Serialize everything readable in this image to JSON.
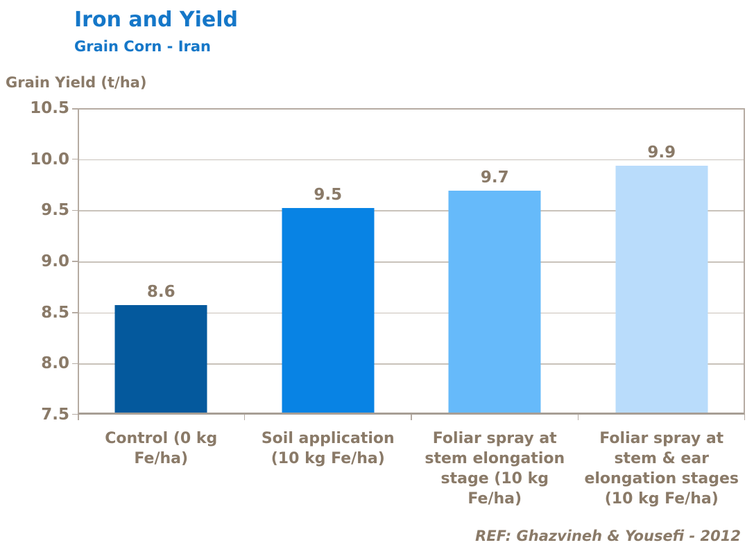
{
  "colors": {
    "title_blue": "#1577C8",
    "text_taupe": "#8A7A68",
    "gridline": "#C9C2BA",
    "plot_border": "#B5ABA2",
    "axis_line": "#A79E95"
  },
  "chart_data": {
    "type": "bar",
    "title": "Iron and Yield",
    "subtitle": "Grain Corn - Iran",
    "ylabel": "Grain Yield (t/ha)",
    "categories": [
      "Control (0 kg Fe/ha)",
      "Soil application (10 kg Fe/ha)",
      "Foliar spray at stem elongation stage (10 kg Fe/ha)",
      "Foliar spray at stem & ear elongation stages (10 kg Fe/ha)"
    ],
    "categories_display": [
      "Control (0 kg\nFe/ha)",
      "Soil application\n(10 kg Fe/ha)",
      "Foliar spray at\nstem elongation\nstage (10 kg\nFe/ha)",
      "Foliar spray at\nstem & ear\nelongation stages\n(10 kg Fe/ha)"
    ],
    "values": [
      8.6,
      9.5,
      9.7,
      9.9
    ],
    "value_labels": [
      "8.6",
      "9.5",
      "9.7",
      "9.9"
    ],
    "plotted_values": [
      8.57,
      9.52,
      9.69,
      9.94
    ],
    "ylim": [
      7.5,
      10.5
    ],
    "ytick_step": 0.5,
    "yticks": [
      "10.5",
      "10.0",
      "9.5",
      "9.0",
      "8.5",
      "8.0",
      "7.5"
    ],
    "grid": "horizontal gridlines on",
    "legend": "none",
    "bar_colors": [
      "#04599D",
      "#0883E4",
      "#66BAFA",
      "#B9DCFB"
    ],
    "reference": "REF: Ghazvineh & Yousefi - 2012"
  }
}
